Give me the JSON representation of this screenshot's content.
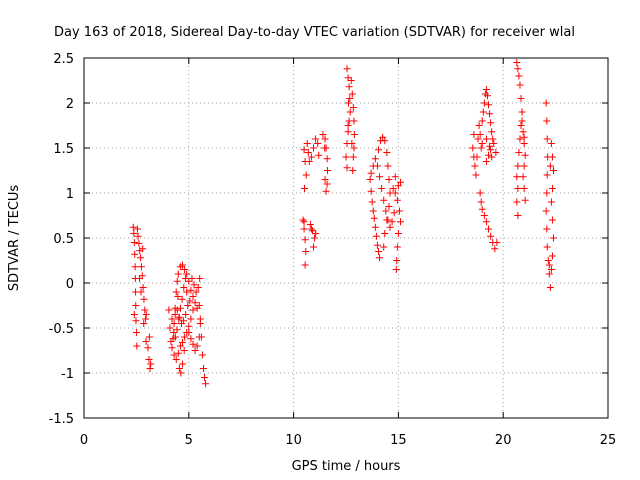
{
  "chart_data": {
    "type": "scatter",
    "title": "Day 163 of 2018, Sidereal Day-to-day VTEC variation (SDTVAR) for receiver wlal",
    "xlabel": "GPS time / hours",
    "ylabel": "SDTVAR / TECUs",
    "xlim": [
      0,
      25
    ],
    "ylim": [
      -1.5,
      2.5
    ],
    "x_ticks": [
      0,
      5,
      10,
      15,
      20,
      25
    ],
    "x_tick_labels": [
      "0",
      "5",
      "10",
      "15",
      "20",
      "25"
    ],
    "y_ticks": [
      -1.5,
      -1,
      -0.5,
      0,
      0.5,
      1,
      1.5,
      2,
      2.5
    ],
    "y_tick_labels": [
      "-1.5",
      "-1",
      "-0.5",
      "0",
      "0.5",
      "1",
      "1.5",
      "2",
      "2.5"
    ],
    "grid": true,
    "legend": "none",
    "marker": "+",
    "series": [
      {
        "name": "SDTVAR",
        "color": "#ff0000",
        "points": [
          [
            2.35,
            0.62
          ],
          [
            2.38,
            0.55
          ],
          [
            2.4,
            0.45
          ],
          [
            2.42,
            0.32
          ],
          [
            2.44,
            0.18
          ],
          [
            2.45,
            0.05
          ],
          [
            2.46,
            -0.1
          ],
          [
            2.47,
            -0.25
          ],
          [
            2.48,
            -0.42
          ],
          [
            2.5,
            -0.55
          ],
          [
            2.52,
            -0.7
          ],
          [
            2.4,
            -0.35
          ],
          [
            2.55,
            0.6
          ],
          [
            2.58,
            0.52
          ],
          [
            2.62,
            0.44
          ],
          [
            2.66,
            0.36
          ],
          [
            2.7,
            0.28
          ],
          [
            2.74,
            0.18
          ],
          [
            2.78,
            0.08
          ],
          [
            2.82,
            -0.05
          ],
          [
            2.86,
            -0.18
          ],
          [
            2.9,
            -0.3
          ],
          [
            2.94,
            -0.4
          ],
          [
            2.97,
            -0.35
          ],
          [
            2.72,
            -0.1
          ],
          [
            2.65,
            0.05
          ],
          [
            2.8,
            0.38
          ],
          [
            2.85,
            -0.45
          ],
          [
            2.96,
            -0.65
          ],
          [
            3.05,
            -0.72
          ],
          [
            3.1,
            -0.85
          ],
          [
            3.15,
            -0.95
          ],
          [
            3.18,
            -0.9
          ],
          [
            3.12,
            -0.6
          ],
          [
            4.05,
            -0.3
          ],
          [
            4.1,
            -0.5
          ],
          [
            4.15,
            -0.65
          ],
          [
            4.2,
            -0.72
          ],
          [
            4.25,
            -0.62
          ],
          [
            4.3,
            -0.45
          ],
          [
            4.35,
            -0.28
          ],
          [
            4.4,
            -0.1
          ],
          [
            4.45,
            0.02
          ],
          [
            4.48,
            -0.15
          ],
          [
            4.2,
            -0.4
          ],
          [
            4.28,
            -0.55
          ],
          [
            4.36,
            -0.6
          ],
          [
            4.44,
            -0.52
          ],
          [
            4.52,
            -0.4
          ],
          [
            4.6,
            -0.28
          ],
          [
            4.68,
            -0.18
          ],
          [
            4.76,
            -0.05
          ],
          [
            4.84,
            0.05
          ],
          [
            4.9,
            -0.1
          ],
          [
            4.3,
            -0.8
          ],
          [
            4.4,
            -0.85
          ],
          [
            4.5,
            -0.78
          ],
          [
            4.6,
            -0.7
          ],
          [
            4.7,
            -0.66
          ],
          [
            4.8,
            -0.6
          ],
          [
            4.9,
            -0.55
          ],
          [
            5.0,
            -0.48
          ],
          [
            5.1,
            -0.4
          ],
          [
            5.2,
            -0.3
          ],
          [
            4.35,
            -0.35
          ],
          [
            4.45,
            -0.3
          ],
          [
            4.55,
            -0.38
          ],
          [
            4.65,
            -0.45
          ],
          [
            4.75,
            -0.42
          ],
          [
            4.85,
            -0.35
          ],
          [
            4.95,
            -0.25
          ],
          [
            5.05,
            -0.2
          ],
          [
            4.55,
            -0.95
          ],
          [
            4.62,
            -1.0
          ],
          [
            4.7,
            -0.9
          ],
          [
            4.78,
            -0.75
          ],
          [
            4.5,
            0.1
          ],
          [
            4.6,
            0.18
          ],
          [
            4.7,
            0.2
          ],
          [
            4.8,
            0.15
          ],
          [
            4.9,
            0.1
          ],
          [
            5.0,
            0.02
          ],
          [
            5.1,
            -0.08
          ],
          [
            5.2,
            -0.15
          ],
          [
            5.3,
            -0.22
          ],
          [
            5.4,
            -0.28
          ],
          [
            5.0,
            -0.55
          ],
          [
            5.1,
            -0.62
          ],
          [
            5.2,
            -0.68
          ],
          [
            5.3,
            -0.75
          ],
          [
            5.4,
            -0.7
          ],
          [
            5.5,
            -0.6
          ],
          [
            5.55,
            -0.45
          ],
          [
            5.5,
            -0.25
          ],
          [
            5.55,
            -0.4
          ],
          [
            5.6,
            -0.6
          ],
          [
            5.65,
            -0.8
          ],
          [
            5.7,
            -0.95
          ],
          [
            5.75,
            -1.05
          ],
          [
            5.8,
            -1.12
          ],
          [
            5.15,
            0.05
          ],
          [
            5.25,
            -0.02
          ],
          [
            5.35,
            -0.1
          ],
          [
            5.45,
            -0.05
          ],
          [
            5.52,
            0.05
          ],
          [
            10.45,
            0.7
          ],
          [
            10.5,
            0.6
          ],
          [
            10.55,
            0.48
          ],
          [
            10.58,
            0.35
          ],
          [
            10.55,
            0.2
          ],
          [
            10.6,
            1.2
          ],
          [
            10.55,
            1.35
          ],
          [
            10.5,
            1.48
          ],
          [
            10.52,
            1.05
          ],
          [
            10.5,
            0.68
          ],
          [
            10.65,
            1.55
          ],
          [
            10.7,
            1.45
          ],
          [
            10.75,
            1.35
          ],
          [
            10.85,
            1.4
          ],
          [
            10.95,
            1.5
          ],
          [
            11.05,
            1.6
          ],
          [
            11.15,
            1.55
          ],
          [
            11.2,
            1.42
          ],
          [
            10.8,
            0.65
          ],
          [
            10.9,
            0.58
          ],
          [
            11.0,
            0.5
          ],
          [
            10.95,
            0.4
          ],
          [
            10.85,
            0.6
          ],
          [
            11.05,
            0.55
          ],
          [
            11.4,
            1.65
          ],
          [
            11.5,
            1.6
          ],
          [
            11.55,
            1.5
          ],
          [
            11.6,
            1.38
          ],
          [
            11.62,
            1.25
          ],
          [
            11.6,
            1.1
          ],
          [
            11.55,
            1.02
          ],
          [
            11.5,
            1.15
          ],
          [
            11.48,
            1.5
          ],
          [
            12.55,
            2.38
          ],
          [
            12.6,
            2.28
          ],
          [
            12.65,
            2.18
          ],
          [
            12.68,
            2.05
          ],
          [
            12.7,
            1.9
          ],
          [
            12.65,
            1.8
          ],
          [
            12.6,
            1.68
          ],
          [
            12.55,
            1.55
          ],
          [
            12.5,
            1.4
          ],
          [
            12.55,
            1.28
          ],
          [
            12.6,
            1.75
          ],
          [
            12.62,
            2.0
          ],
          [
            12.75,
            2.25
          ],
          [
            12.8,
            2.1
          ],
          [
            12.85,
            1.95
          ],
          [
            12.88,
            1.8
          ],
          [
            12.9,
            1.65
          ],
          [
            12.88,
            1.5
          ],
          [
            12.85,
            1.4
          ],
          [
            12.82,
            1.25
          ],
          [
            12.78,
            1.55
          ],
          [
            13.65,
            1.15
          ],
          [
            13.7,
            1.02
          ],
          [
            13.75,
            0.9
          ],
          [
            13.8,
            0.8
          ],
          [
            13.85,
            0.72
          ],
          [
            13.9,
            0.62
          ],
          [
            13.95,
            0.52
          ],
          [
            14.0,
            0.42
          ],
          [
            14.05,
            0.35
          ],
          [
            14.1,
            0.28
          ],
          [
            13.7,
            1.22
          ],
          [
            13.8,
            1.3
          ],
          [
            13.9,
            1.38
          ],
          [
            14.0,
            1.3
          ],
          [
            14.1,
            1.18
          ],
          [
            14.2,
            1.05
          ],
          [
            14.3,
            0.92
          ],
          [
            14.4,
            0.8
          ],
          [
            14.5,
            0.7
          ],
          [
            14.6,
            0.62
          ],
          [
            14.7,
            0.68
          ],
          [
            14.8,
            0.78
          ],
          [
            14.05,
            1.48
          ],
          [
            14.15,
            1.58
          ],
          [
            14.25,
            1.62
          ],
          [
            14.35,
            1.58
          ],
          [
            14.45,
            1.45
          ],
          [
            14.5,
            1.3
          ],
          [
            14.55,
            1.15
          ],
          [
            14.6,
            1.0
          ],
          [
            14.55,
            0.85
          ],
          [
            14.45,
            0.7
          ],
          [
            14.35,
            0.55
          ],
          [
            14.3,
            0.4
          ],
          [
            14.75,
            1.05
          ],
          [
            14.85,
            1.0
          ],
          [
            14.95,
            0.92
          ],
          [
            15.05,
            0.8
          ],
          [
            15.1,
            0.68
          ],
          [
            15.0,
            0.55
          ],
          [
            14.95,
            0.4
          ],
          [
            14.92,
            0.25
          ],
          [
            14.9,
            0.15
          ],
          [
            15.1,
            1.12
          ],
          [
            15.0,
            1.08
          ],
          [
            14.85,
            1.18
          ],
          [
            18.55,
            1.5
          ],
          [
            18.6,
            1.4
          ],
          [
            18.65,
            1.3
          ],
          [
            18.7,
            1.2
          ],
          [
            18.75,
            1.4
          ],
          [
            18.8,
            1.6
          ],
          [
            18.85,
            1.75
          ],
          [
            18.9,
            1.65
          ],
          [
            18.95,
            1.5
          ],
          [
            19.0,
            1.55
          ],
          [
            18.6,
            1.65
          ],
          [
            18.9,
            1.0
          ],
          [
            18.95,
            0.9
          ],
          [
            19.0,
            0.82
          ],
          [
            19.1,
            0.75
          ],
          [
            19.2,
            0.68
          ],
          [
            19.3,
            0.6
          ],
          [
            19.4,
            0.52
          ],
          [
            19.5,
            0.45
          ],
          [
            19.6,
            0.38
          ],
          [
            19.7,
            0.45
          ],
          [
            19.0,
            1.8
          ],
          [
            19.05,
            1.9
          ],
          [
            19.1,
            2.0
          ],
          [
            19.15,
            2.1
          ],
          [
            19.2,
            2.15
          ],
          [
            19.25,
            2.08
          ],
          [
            19.3,
            1.98
          ],
          [
            19.35,
            1.88
          ],
          [
            19.4,
            1.78
          ],
          [
            19.45,
            1.68
          ],
          [
            19.5,
            1.6
          ],
          [
            19.55,
            1.55
          ],
          [
            19.65,
            1.45
          ],
          [
            19.2,
            1.35
          ],
          [
            19.3,
            1.42
          ],
          [
            19.4,
            1.48
          ],
          [
            19.45,
            1.4
          ],
          [
            19.2,
            1.6
          ],
          [
            19.35,
            1.52
          ],
          [
            20.65,
            2.45
          ],
          [
            20.7,
            2.38
          ],
          [
            20.75,
            2.3
          ],
          [
            20.8,
            2.2
          ],
          [
            20.85,
            2.05
          ],
          [
            20.9,
            1.9
          ],
          [
            20.85,
            1.75
          ],
          [
            20.8,
            1.6
          ],
          [
            20.75,
            1.45
          ],
          [
            20.7,
            1.3
          ],
          [
            20.65,
            1.18
          ],
          [
            20.7,
            1.05
          ],
          [
            20.65,
            0.9
          ],
          [
            20.7,
            0.75
          ],
          [
            20.9,
            1.8
          ],
          [
            20.95,
            1.68
          ],
          [
            21.0,
            1.55
          ],
          [
            21.05,
            1.42
          ],
          [
            21.0,
            1.3
          ],
          [
            20.95,
            1.18
          ],
          [
            21.0,
            1.05
          ],
          [
            21.05,
            0.92
          ],
          [
            21.0,
            1.62
          ],
          [
            22.05,
            2.0
          ],
          [
            22.08,
            1.8
          ],
          [
            22.1,
            1.6
          ],
          [
            22.12,
            1.4
          ],
          [
            22.1,
            1.2
          ],
          [
            22.08,
            1.0
          ],
          [
            22.05,
            0.8
          ],
          [
            22.08,
            0.6
          ],
          [
            22.1,
            0.4
          ],
          [
            22.15,
            0.25
          ],
          [
            22.2,
            0.1
          ],
          [
            22.25,
            -0.05
          ],
          [
            22.2,
            0.2
          ],
          [
            22.3,
            1.55
          ],
          [
            22.35,
            1.4
          ],
          [
            22.4,
            1.25
          ],
          [
            22.35,
            1.05
          ],
          [
            22.3,
            0.9
          ],
          [
            22.35,
            0.7
          ],
          [
            22.4,
            0.5
          ],
          [
            22.35,
            0.3
          ],
          [
            22.3,
            0.15
          ],
          [
            22.25,
            1.3
          ]
        ]
      }
    ]
  }
}
